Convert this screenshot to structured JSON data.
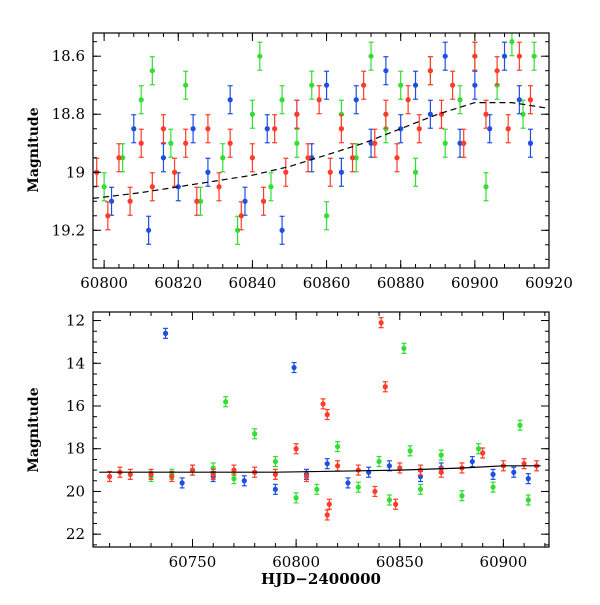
{
  "chart_data": [
    {
      "type": "scatter",
      "panel": "top",
      "title": "",
      "xlabel": "",
      "ylabel": "Magnitude",
      "xlim": [
        60797,
        60920
      ],
      "ylim": [
        19.33,
        18.52
      ],
      "y_inverted": true,
      "xticks": [
        60800,
        60820,
        60840,
        60860,
        60880,
        60900,
        60920
      ],
      "xtick_labels": [
        "60800",
        "60820",
        "60840",
        "60860",
        "60880",
        "60900",
        "60920"
      ],
      "yticks": [
        18.6,
        18.8,
        19,
        19.2
      ],
      "ytick_labels": [
        "18.6",
        "18.8",
        "19",
        "19.2"
      ],
      "grid": false,
      "legend": "none",
      "model_curve": {
        "style": "dashed",
        "x": [
          60797,
          60810,
          60820,
          60830,
          60840,
          60850,
          60860,
          60870,
          60880,
          60890,
          60900,
          60910,
          60920
        ],
        "y": [
          19.09,
          19.07,
          19.05,
          19.03,
          19.01,
          18.98,
          18.94,
          18.9,
          18.85,
          18.8,
          18.76,
          18.76,
          18.78
        ]
      },
      "series": [
        {
          "color": "#33dd33",
          "points": [
            [
              60800,
              19.05
            ],
            [
              60805,
              18.95
            ],
            [
              60810,
              18.75
            ],
            [
              60813,
              18.65
            ],
            [
              60818,
              18.9
            ],
            [
              60822,
              18.7
            ],
            [
              60826,
              19.1
            ],
            [
              60832,
              18.95
            ],
            [
              60836,
              19.2
            ],
            [
              60840,
              18.8
            ],
            [
              60842,
              18.6
            ],
            [
              60845,
              19.05
            ],
            [
              60848,
              18.75
            ],
            [
              60852,
              18.9
            ],
            [
              60856,
              18.7
            ],
            [
              60860,
              19.15
            ],
            [
              60864,
              18.8
            ],
            [
              60868,
              18.95
            ],
            [
              60872,
              18.6
            ],
            [
              60876,
              18.85
            ],
            [
              60880,
              18.7
            ],
            [
              60884,
              19.0
            ],
            [
              60888,
              18.65
            ],
            [
              60892,
              18.9
            ],
            [
              60896,
              18.75
            ],
            [
              60900,
              18.6
            ],
            [
              60903,
              19.05
            ],
            [
              60906,
              18.7
            ],
            [
              60910,
              18.55
            ],
            [
              60913,
              18.8
            ],
            [
              60916,
              18.6
            ]
          ]
        },
        {
          "color": "#1e4fe0",
          "points": [
            [
              60802,
              19.1
            ],
            [
              60808,
              18.85
            ],
            [
              60812,
              19.2
            ],
            [
              60816,
              18.95
            ],
            [
              60820,
              19.05
            ],
            [
              60824,
              18.85
            ],
            [
              60828,
              19.0
            ],
            [
              60834,
              18.75
            ],
            [
              60838,
              19.1
            ],
            [
              60844,
              18.85
            ],
            [
              60848,
              19.2
            ],
            [
              60852,
              18.8
            ],
            [
              60856,
              18.95
            ],
            [
              60860,
              18.7
            ],
            [
              60864,
              19.0
            ],
            [
              60868,
              18.75
            ],
            [
              60872,
              18.9
            ],
            [
              60876,
              18.65
            ],
            [
              60880,
              18.85
            ],
            [
              60884,
              18.7
            ],
            [
              60888,
              18.8
            ],
            [
              60892,
              18.6
            ],
            [
              60896,
              18.9
            ],
            [
              60900,
              18.7
            ],
            [
              60904,
              18.85
            ],
            [
              60908,
              18.6
            ],
            [
              60912,
              18.75
            ],
            [
              60915,
              18.9
            ]
          ]
        },
        {
          "color": "#ff3b2a",
          "points": [
            [
              60798,
              19.0
            ],
            [
              60801,
              19.15
            ],
            [
              60804,
              18.95
            ],
            [
              60807,
              19.1
            ],
            [
              60810,
              18.9
            ],
            [
              60813,
              19.05
            ],
            [
              60816,
              18.85
            ],
            [
              60819,
              19.0
            ],
            [
              60822,
              18.9
            ],
            [
              60825,
              19.1
            ],
            [
              60828,
              18.85
            ],
            [
              60831,
              19.05
            ],
            [
              60834,
              18.9
            ],
            [
              60837,
              19.15
            ],
            [
              60840,
              18.95
            ],
            [
              60843,
              19.1
            ],
            [
              60846,
              18.85
            ],
            [
              60849,
              19.0
            ],
            [
              60852,
              18.8
            ],
            [
              60855,
              18.95
            ],
            [
              60858,
              18.75
            ],
            [
              60861,
              19.0
            ],
            [
              60864,
              18.85
            ],
            [
              60867,
              18.95
            ],
            [
              60870,
              18.7
            ],
            [
              60873,
              18.9
            ],
            [
              60876,
              18.8
            ],
            [
              60879,
              18.95
            ],
            [
              60882,
              18.75
            ],
            [
              60885,
              18.85
            ],
            [
              60888,
              18.65
            ],
            [
              60891,
              18.8
            ],
            [
              60894,
              18.7
            ],
            [
              60897,
              18.9
            ],
            [
              60900,
              18.6
            ],
            [
              60903,
              18.8
            ],
            [
              60906,
              18.65
            ],
            [
              60909,
              18.85
            ],
            [
              60912,
              18.6
            ],
            [
              60915,
              18.75
            ]
          ]
        }
      ]
    },
    {
      "type": "scatter",
      "panel": "bottom",
      "title": "",
      "xlabel": "HJD−2400000",
      "ylabel": "Magnitude",
      "xlim": [
        60702,
        60922
      ],
      "ylim": [
        22.6,
        11.6
      ],
      "y_inverted": true,
      "xticks": [
        60750,
        60800,
        60850,
        60900
      ],
      "xtick_labels": [
        "60750",
        "60800",
        "60850",
        "60900"
      ],
      "yticks": [
        12,
        14,
        16,
        18,
        20,
        22
      ],
      "ytick_labels": [
        "12",
        "14",
        "16",
        "18",
        "20",
        "22"
      ],
      "grid": false,
      "legend": "none",
      "model_curve": {
        "style": "solid",
        "x": [
          60705,
          60730,
          60760,
          60790,
          60820,
          60850,
          60880,
          60900,
          60918
        ],
        "y": [
          19.1,
          19.1,
          19.1,
          19.1,
          19.05,
          19.0,
          18.9,
          18.8,
          18.8
        ]
      },
      "series": [
        {
          "color": "#1e4fe0",
          "points": [
            [
              60737,
              12.6
            ],
            [
              60799,
              14.2
            ],
            [
              60745,
              19.6
            ],
            [
              60760,
              19.3
            ],
            [
              60775,
              19.5
            ],
            [
              60790,
              19.9
            ],
            [
              60805,
              19.2
            ],
            [
              60815,
              18.7
            ],
            [
              60825,
              19.6
            ],
            [
              60835,
              19.1
            ],
            [
              60845,
              18.8
            ],
            [
              60860,
              19.3
            ],
            [
              60870,
              18.9
            ],
            [
              60885,
              18.6
            ],
            [
              60895,
              19.2
            ],
            [
              60905,
              19.1
            ],
            [
              60912,
              19.4
            ]
          ]
        },
        {
          "color": "#33dd33",
          "points": [
            [
              60766,
              15.8
            ],
            [
              60852,
              13.3
            ],
            [
              60908,
              16.9
            ],
            [
              60780,
              17.3
            ],
            [
              60790,
              18.6
            ],
            [
              60800,
              20.3
            ],
            [
              60810,
              19.9
            ],
            [
              60820,
              17.9
            ],
            [
              60830,
              19.8
            ],
            [
              60840,
              18.6
            ],
            [
              60845,
              20.4
            ],
            [
              60855,
              18.1
            ],
            [
              60860,
              19.9
            ],
            [
              60870,
              18.3
            ],
            [
              60880,
              20.2
            ],
            [
              60888,
              18.0
            ],
            [
              60895,
              19.8
            ],
            [
              60912,
              20.4
            ],
            [
              60750,
              19.0
            ],
            [
              60760,
              18.9
            ],
            [
              60740,
              19.2
            ],
            [
              60730,
              19.3
            ],
            [
              60770,
              19.4
            ]
          ]
        },
        {
          "color": "#ff3b2a",
          "points": [
            [
              60841,
              12.1
            ],
            [
              60843,
              15.1
            ],
            [
              60813,
              15.9
            ],
            [
              60815,
              16.4
            ],
            [
              60816,
              20.6
            ],
            [
              60815,
              21.1
            ],
            [
              60838,
              20.0
            ],
            [
              60848,
              20.6
            ],
            [
              60710,
              19.3
            ],
            [
              60715,
              19.1
            ],
            [
              60720,
              19.2
            ],
            [
              60730,
              19.2
            ],
            [
              60740,
              19.3
            ],
            [
              60750,
              19.0
            ],
            [
              60760,
              19.2
            ],
            [
              60770,
              19.0
            ],
            [
              60780,
              19.1
            ],
            [
              60790,
              19.2
            ],
            [
              60800,
              18.0
            ],
            [
              60805,
              19.3
            ],
            [
              60820,
              18.8
            ],
            [
              60830,
              19.0
            ],
            [
              60850,
              18.9
            ],
            [
              60860,
              19.0
            ],
            [
              60870,
              19.1
            ],
            [
              60880,
              18.9
            ],
            [
              60890,
              18.2
            ],
            [
              60900,
              18.8
            ],
            [
              60910,
              18.7
            ],
            [
              60916,
              18.8
            ]
          ]
        }
      ]
    }
  ]
}
